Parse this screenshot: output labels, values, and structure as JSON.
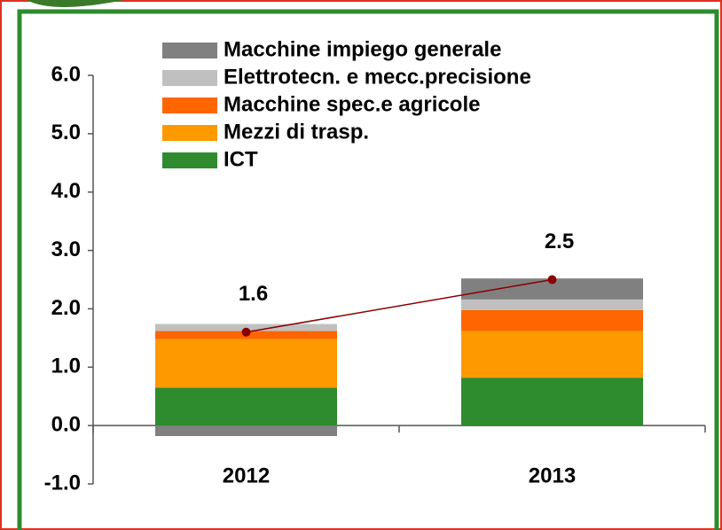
{
  "chart_data": {
    "type": "bar",
    "stacked": true,
    "categories": [
      "2012",
      "2013"
    ],
    "series": [
      {
        "name": "ICT",
        "color": "#2e8b2e",
        "values": [
          0.65,
          0.82
        ]
      },
      {
        "name": "Mezzi di trasp.",
        "color": "#ff9900",
        "values": [
          0.83,
          0.8
        ]
      },
      {
        "name": "Macchine spec.e agricole",
        "color": "#ff6600",
        "values": [
          0.14,
          0.36
        ]
      },
      {
        "name": "Elettrotecn. e mecc.precisione",
        "color": "#c0c0c0",
        "values": [
          0.12,
          0.18
        ]
      },
      {
        "name": "Macchine impiego generale",
        "color": "#808080",
        "values": [
          -0.18,
          0.36
        ]
      }
    ],
    "line": {
      "values": [
        1.6,
        2.5
      ],
      "color": "#8b0000"
    },
    "ylim": [
      -1,
      6
    ],
    "yticks": [
      {
        "value": -1,
        "label": "-1.0"
      },
      {
        "value": 0,
        "label": "0.0"
      },
      {
        "value": 1,
        "label": "1.0"
      },
      {
        "value": 2,
        "label": "2.0"
      },
      {
        "value": 3,
        "label": "3.0"
      },
      {
        "value": 4,
        "label": "4.0"
      },
      {
        "value": 5,
        "label": "5.0"
      },
      {
        "value": 6,
        "label": "6.0"
      }
    ],
    "grid": false
  }
}
